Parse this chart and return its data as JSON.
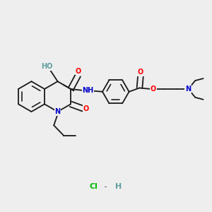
{
  "bg_color": "#eeeeee",
  "bond_color": "#1a1a1a",
  "bond_lw": 1.3,
  "dbo": 0.013,
  "atom_colors": {
    "O": "#ff0000",
    "N": "#0000cc",
    "HO": "#5f9ea0",
    "Cl": "#00bb00",
    "H_salt": "#5f9ea0"
  },
  "font_size": 7.0,
  "font_size_small": 6.5
}
